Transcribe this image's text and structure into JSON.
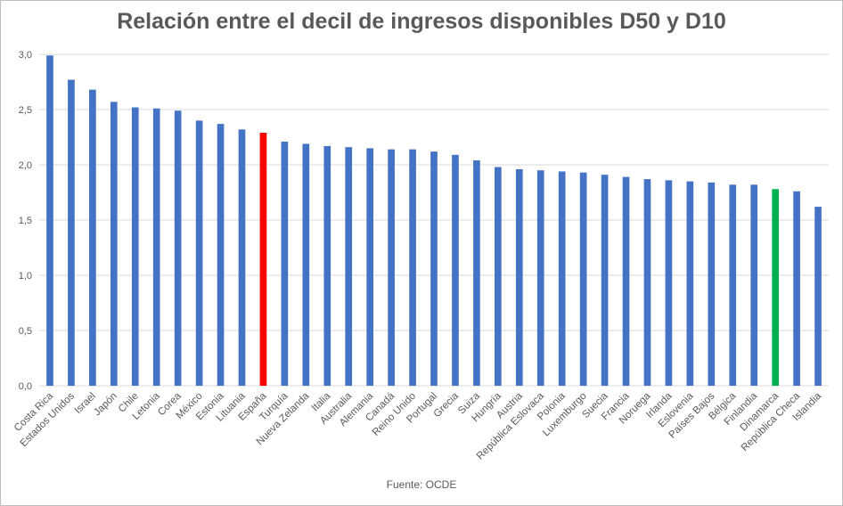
{
  "chart_data": {
    "type": "bar",
    "title": "Relación entre el decil de ingresos disponibles D50 y D10",
    "source": "Fuente: OCDE",
    "xlabel": "",
    "ylabel": "",
    "ylim": [
      0,
      3.0
    ],
    "yticks": [
      "0,0",
      "0,5",
      "1,0",
      "1,5",
      "2,0",
      "2,5",
      "3,0"
    ],
    "grid": true,
    "legend": "none",
    "colors": {
      "default": "#4472c4",
      "highlight_red": "#ff0000",
      "highlight_green": "#00b050",
      "grid": "#d9d9d9"
    },
    "categories": [
      "Costa Rica",
      "Estados Unidos",
      "Israel",
      "Japón",
      "Chile",
      "Letonia",
      "Corea",
      "México",
      "Estonia",
      "Lituania",
      "España",
      "Turquía",
      "Nueva Zelanda",
      "Italia",
      "Australia",
      "Alemania",
      "Canadá",
      "Reino Unido",
      "Portugal",
      "Grecia",
      "Suiza",
      "Hungría",
      "Austria",
      "República Eslovaca",
      "Polonia",
      "Luxemburgo",
      "Suecia",
      "Francia",
      "Noruega",
      "Irlanda",
      "Eslovenia",
      "Países Bajos",
      "Bélgica",
      "Finlandia",
      "Dinamarca",
      "República Checa",
      "Islandia"
    ],
    "values": [
      2.99,
      2.77,
      2.68,
      2.57,
      2.52,
      2.51,
      2.49,
      2.4,
      2.37,
      2.32,
      2.29,
      2.21,
      2.19,
      2.17,
      2.16,
      2.15,
      2.14,
      2.14,
      2.12,
      2.09,
      2.04,
      1.98,
      1.96,
      1.95,
      1.94,
      1.93,
      1.91,
      1.89,
      1.87,
      1.86,
      1.85,
      1.84,
      1.82,
      1.82,
      1.78,
      1.76,
      1.62
    ],
    "bar_colors": [
      "default",
      "default",
      "default",
      "default",
      "default",
      "default",
      "default",
      "default",
      "default",
      "default",
      "highlight_red",
      "default",
      "default",
      "default",
      "default",
      "default",
      "default",
      "default",
      "default",
      "default",
      "default",
      "default",
      "default",
      "default",
      "default",
      "default",
      "default",
      "default",
      "default",
      "default",
      "default",
      "default",
      "default",
      "default",
      "highlight_green",
      "default",
      "default"
    ]
  }
}
